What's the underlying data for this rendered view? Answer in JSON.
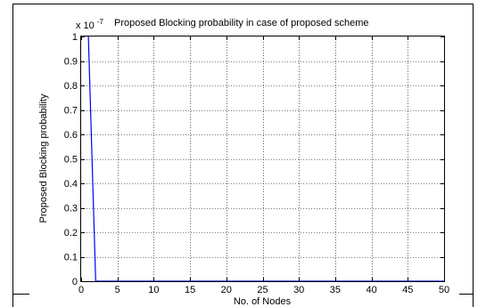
{
  "chart_data": {
    "type": "line",
    "title": "Proposed Blocking probability in case of proposed scheme",
    "xlabel": "No. of Nodes",
    "ylabel": "Proposed Blocking probability",
    "y_multiplier_base": "x 10",
    "y_multiplier_exp": "-7",
    "xlim": [
      0,
      50
    ],
    "ylim": [
      0,
      1
    ],
    "x_ticks": [
      0,
      5,
      10,
      15,
      20,
      25,
      30,
      35,
      40,
      45,
      50
    ],
    "y_ticks": [
      0,
      0.1,
      0.2,
      0.3,
      0.4,
      0.5,
      0.6,
      0.7,
      0.8,
      0.9,
      1
    ],
    "x_tick_labels": [
      "0",
      "5",
      "10",
      "15",
      "20",
      "25",
      "30",
      "35",
      "40",
      "45",
      "50"
    ],
    "y_tick_labels": [
      "0",
      "0.1",
      "0.2",
      "0.3",
      "0.4",
      "0.5",
      "0.6",
      "0.7",
      "0.8",
      "0.9",
      "1"
    ],
    "grid": true,
    "series": [
      {
        "color": "#0000ff",
        "x": [
          1,
          2,
          3,
          4,
          5,
          6,
          7,
          8,
          9,
          10,
          11,
          12,
          13,
          14,
          15,
          16,
          17,
          18,
          19,
          20,
          21,
          22,
          23,
          24,
          25,
          26,
          27,
          28,
          29,
          30,
          31,
          32,
          33,
          34,
          35,
          36,
          37,
          38,
          39,
          40,
          41,
          42,
          43,
          44,
          45,
          46,
          47,
          48,
          49,
          50
        ],
        "y": [
          1,
          0,
          0,
          0,
          0,
          0,
          0,
          0,
          0,
          0,
          0,
          0,
          0,
          0,
          0,
          0,
          0,
          0,
          0,
          0,
          0,
          0,
          0,
          0,
          0,
          0,
          0,
          0,
          0,
          0,
          0,
          0,
          0,
          0,
          0,
          0,
          0,
          0,
          0,
          0,
          0,
          0,
          0,
          0,
          0,
          0,
          0,
          0,
          0,
          0
        ]
      }
    ]
  }
}
